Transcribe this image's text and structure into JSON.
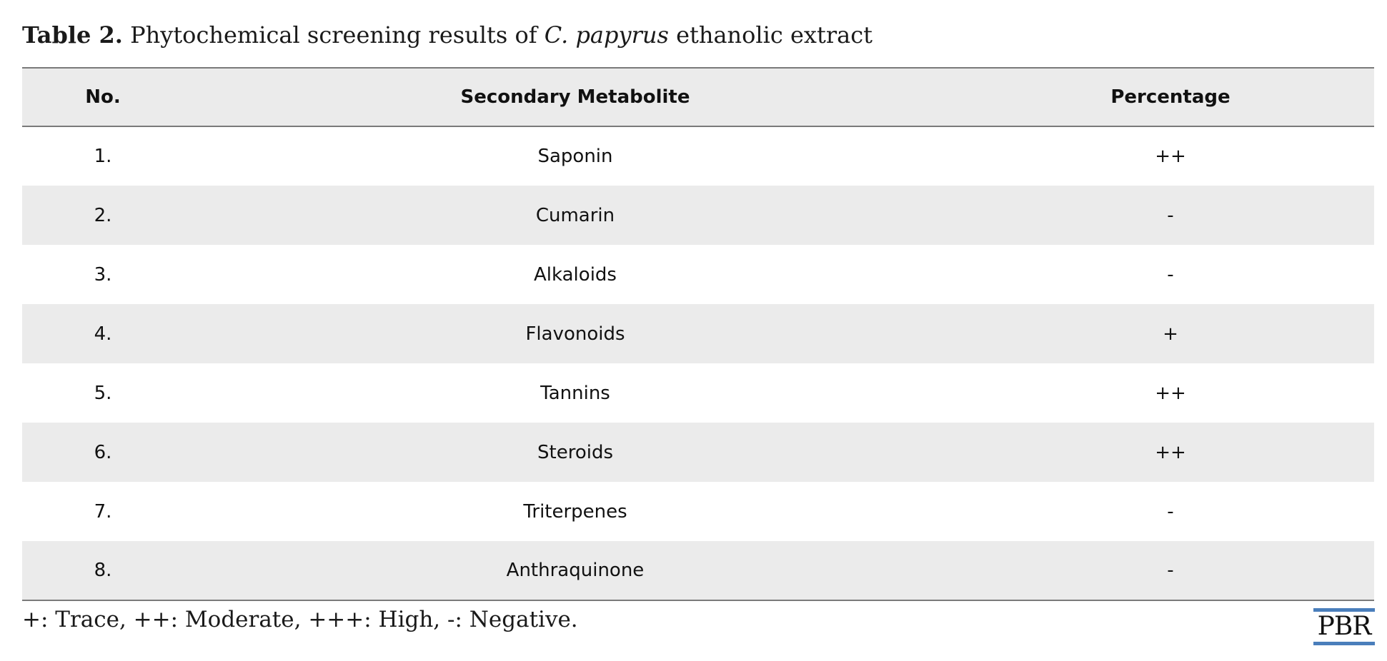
{
  "caption": {
    "label": "Table 2.",
    "text_before": " Phytochemical screening results of ",
    "species": "C. papyrus",
    "text_after": " ethanolic extract"
  },
  "table": {
    "headers": [
      "No.",
      "Secondary Metabolite",
      "Percentage"
    ],
    "rows": [
      {
        "no": "1.",
        "metabolite": "Saponin",
        "percentage": "++"
      },
      {
        "no": "2.",
        "metabolite": "Cumarin",
        "percentage": "-"
      },
      {
        "no": "3.",
        "metabolite": "Alkaloids",
        "percentage": "-"
      },
      {
        "no": "4.",
        "metabolite": "Flavonoids",
        "percentage": "+"
      },
      {
        "no": "5.",
        "metabolite": "Tannins",
        "percentage": "++"
      },
      {
        "no": "6.",
        "metabolite": "Steroids",
        "percentage": "++"
      },
      {
        "no": "7.",
        "metabolite": "Triterpenes",
        "percentage": "-"
      },
      {
        "no": "8.",
        "metabolite": "Anthraquinone",
        "percentage": "-"
      }
    ]
  },
  "footnote": "+: Trace, ++: Moderate, +++: High, -: Negative.",
  "logo": {
    "text": "PBR",
    "accent_color": "#4a7ebb"
  }
}
